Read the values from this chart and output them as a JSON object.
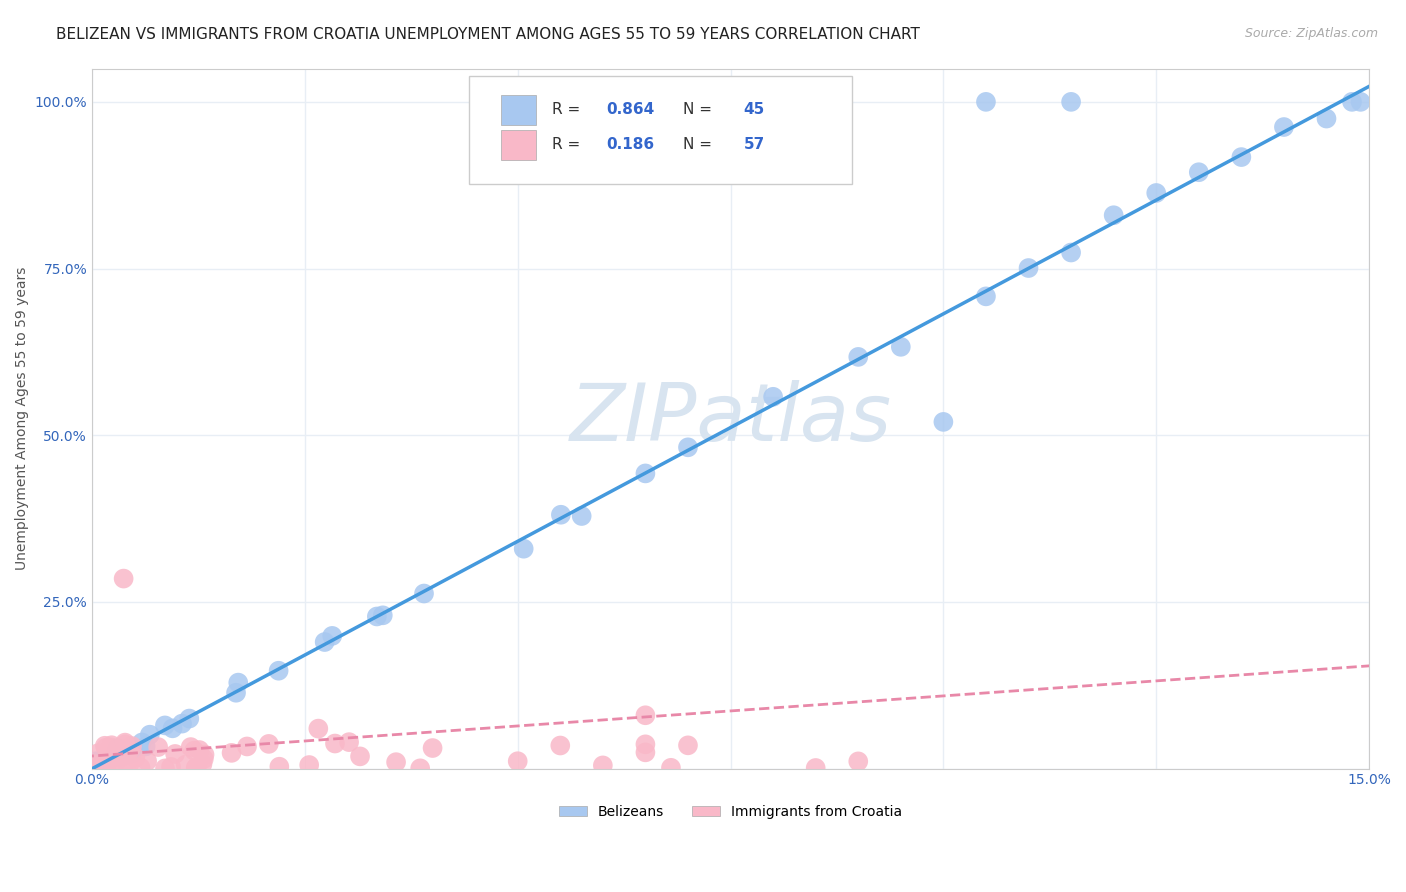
{
  "title": "BELIZEAN VS IMMIGRANTS FROM CROATIA UNEMPLOYMENT AMONG AGES 55 TO 59 YEARS CORRELATION CHART",
  "source": "Source: ZipAtlas.com",
  "ylabel": "Unemployment Among Ages 55 to 59 years",
  "xlim": [
    0.0,
    0.15
  ],
  "ylim": [
    0.0,
    1.05
  ],
  "xticks": [
    0.0,
    0.025,
    0.05,
    0.075,
    0.1,
    0.125,
    0.15
  ],
  "xtick_labels": [
    "0.0%",
    "",
    "",
    "",
    "",
    "",
    "15.0%"
  ],
  "yticks": [
    0.0,
    0.25,
    0.5,
    0.75,
    1.0
  ],
  "ytick_labels": [
    "",
    "25.0%",
    "50.0%",
    "75.0%",
    "100.0%"
  ],
  "belizean_R": "0.864",
  "belizean_N": "45",
  "croatia_R": "0.186",
  "croatia_N": "57",
  "belizean_color": "#a8c8f0",
  "croatia_color": "#f9b8c8",
  "belizean_line_color": "#4499dd",
  "croatia_line_color": "#e888a8",
  "watermark_color": "#d8e4f0",
  "legend_labels": [
    "Belizeans",
    "Immigrants from Croatia"
  ],
  "grid_color": "#e8eef5",
  "background_color": "#ffffff",
  "title_fontsize": 11,
  "axis_label_fontsize": 10,
  "tick_fontsize": 10
}
